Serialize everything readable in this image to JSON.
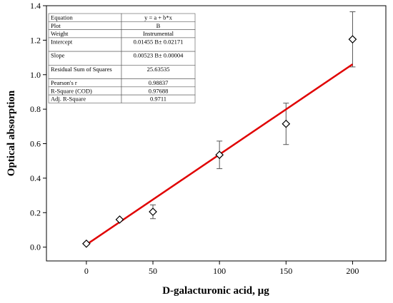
{
  "chart_data": {
    "type": "scatter",
    "xlabel": "D-galacturonic acid, µg",
    "ylabel": "Optical absorption",
    "xlim": [
      -30,
      225
    ],
    "ylim": [
      -0.08,
      1.4
    ],
    "x_ticks": [
      0,
      50,
      100,
      150,
      200
    ],
    "x_tick_labels": [
      "0",
      "50",
      "100",
      "150",
      "200"
    ],
    "y_ticks": [
      0.0,
      0.2,
      0.4,
      0.6,
      0.8,
      1.0,
      1.2,
      1.4
    ],
    "y_tick_labels": [
      "0.0",
      "0.2",
      "0.4",
      "0.6",
      "0.8",
      "1.0",
      "1.2",
      "1.4"
    ],
    "grid": false,
    "series": [
      {
        "marker": "diamond",
        "marker_color": "#000000",
        "x": [
          0,
          25,
          50,
          100,
          150,
          200
        ],
        "y": [
          0.02,
          0.16,
          0.205,
          0.535,
          0.715,
          1.205
        ],
        "error": [
          0.0,
          0.0,
          0.04,
          0.08,
          0.12,
          0.16
        ]
      }
    ],
    "fit_line": {
      "color": "#e00000",
      "intercept": 0.01455,
      "slope": 0.00523,
      "x_range": [
        0,
        200
      ]
    },
    "fit_table": [
      [
        "Equation",
        "y = a + b*x"
      ],
      [
        "Plot",
        "B"
      ],
      [
        "Weight",
        "Instrumental"
      ],
      [
        "Intercept",
        "0.01455 B± 0.02171"
      ],
      [
        "Slope",
        "0.00523 B± 0.00004"
      ],
      [
        "Residual Sum of Squares",
        "25.63535"
      ],
      [
        "Pearson's r",
        "0.98837"
      ],
      [
        "R-Square (COD)",
        "0.97688"
      ],
      [
        "Adj. R-Square",
        "0.9711"
      ]
    ]
  }
}
